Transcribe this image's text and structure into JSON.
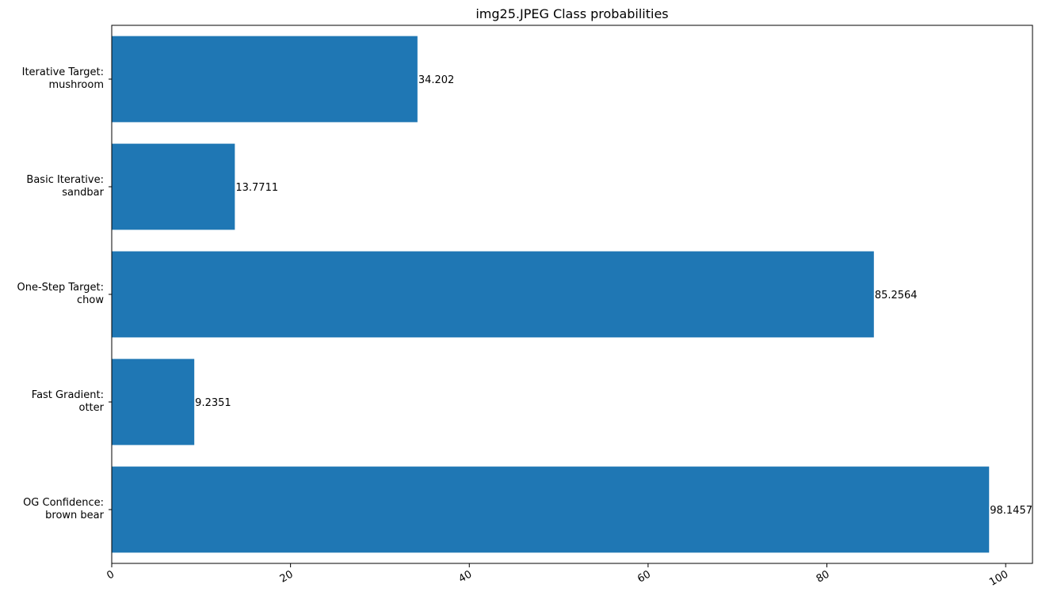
{
  "chart_data": {
    "type": "bar",
    "orientation": "horizontal",
    "title": "img25.JPEG Class probabilities",
    "xlabel": "",
    "ylabel": "",
    "categories": [
      [
        "Iterative Target:",
        "mushroom"
      ],
      [
        "Basic Iterative:",
        "sandbar"
      ],
      [
        "One-Step Target:",
        "chow"
      ],
      [
        "Fast Gradient:",
        "otter"
      ],
      [
        "OG Confidence:",
        "brown bear"
      ]
    ],
    "values": [
      34.202,
      13.7711,
      85.2564,
      9.2351,
      98.1457
    ],
    "value_labels": [
      "34.202",
      "13.7711",
      "85.2564",
      "9.2351",
      "98.1457"
    ],
    "xlim": [
      0,
      103
    ],
    "xticks": [
      0,
      20,
      40,
      60,
      80,
      100
    ],
    "xtick_labels": [
      "0",
      "20",
      "40",
      "60",
      "80",
      "100"
    ],
    "bar_color": "#1f77b4",
    "grid": false,
    "legend": "none"
  }
}
